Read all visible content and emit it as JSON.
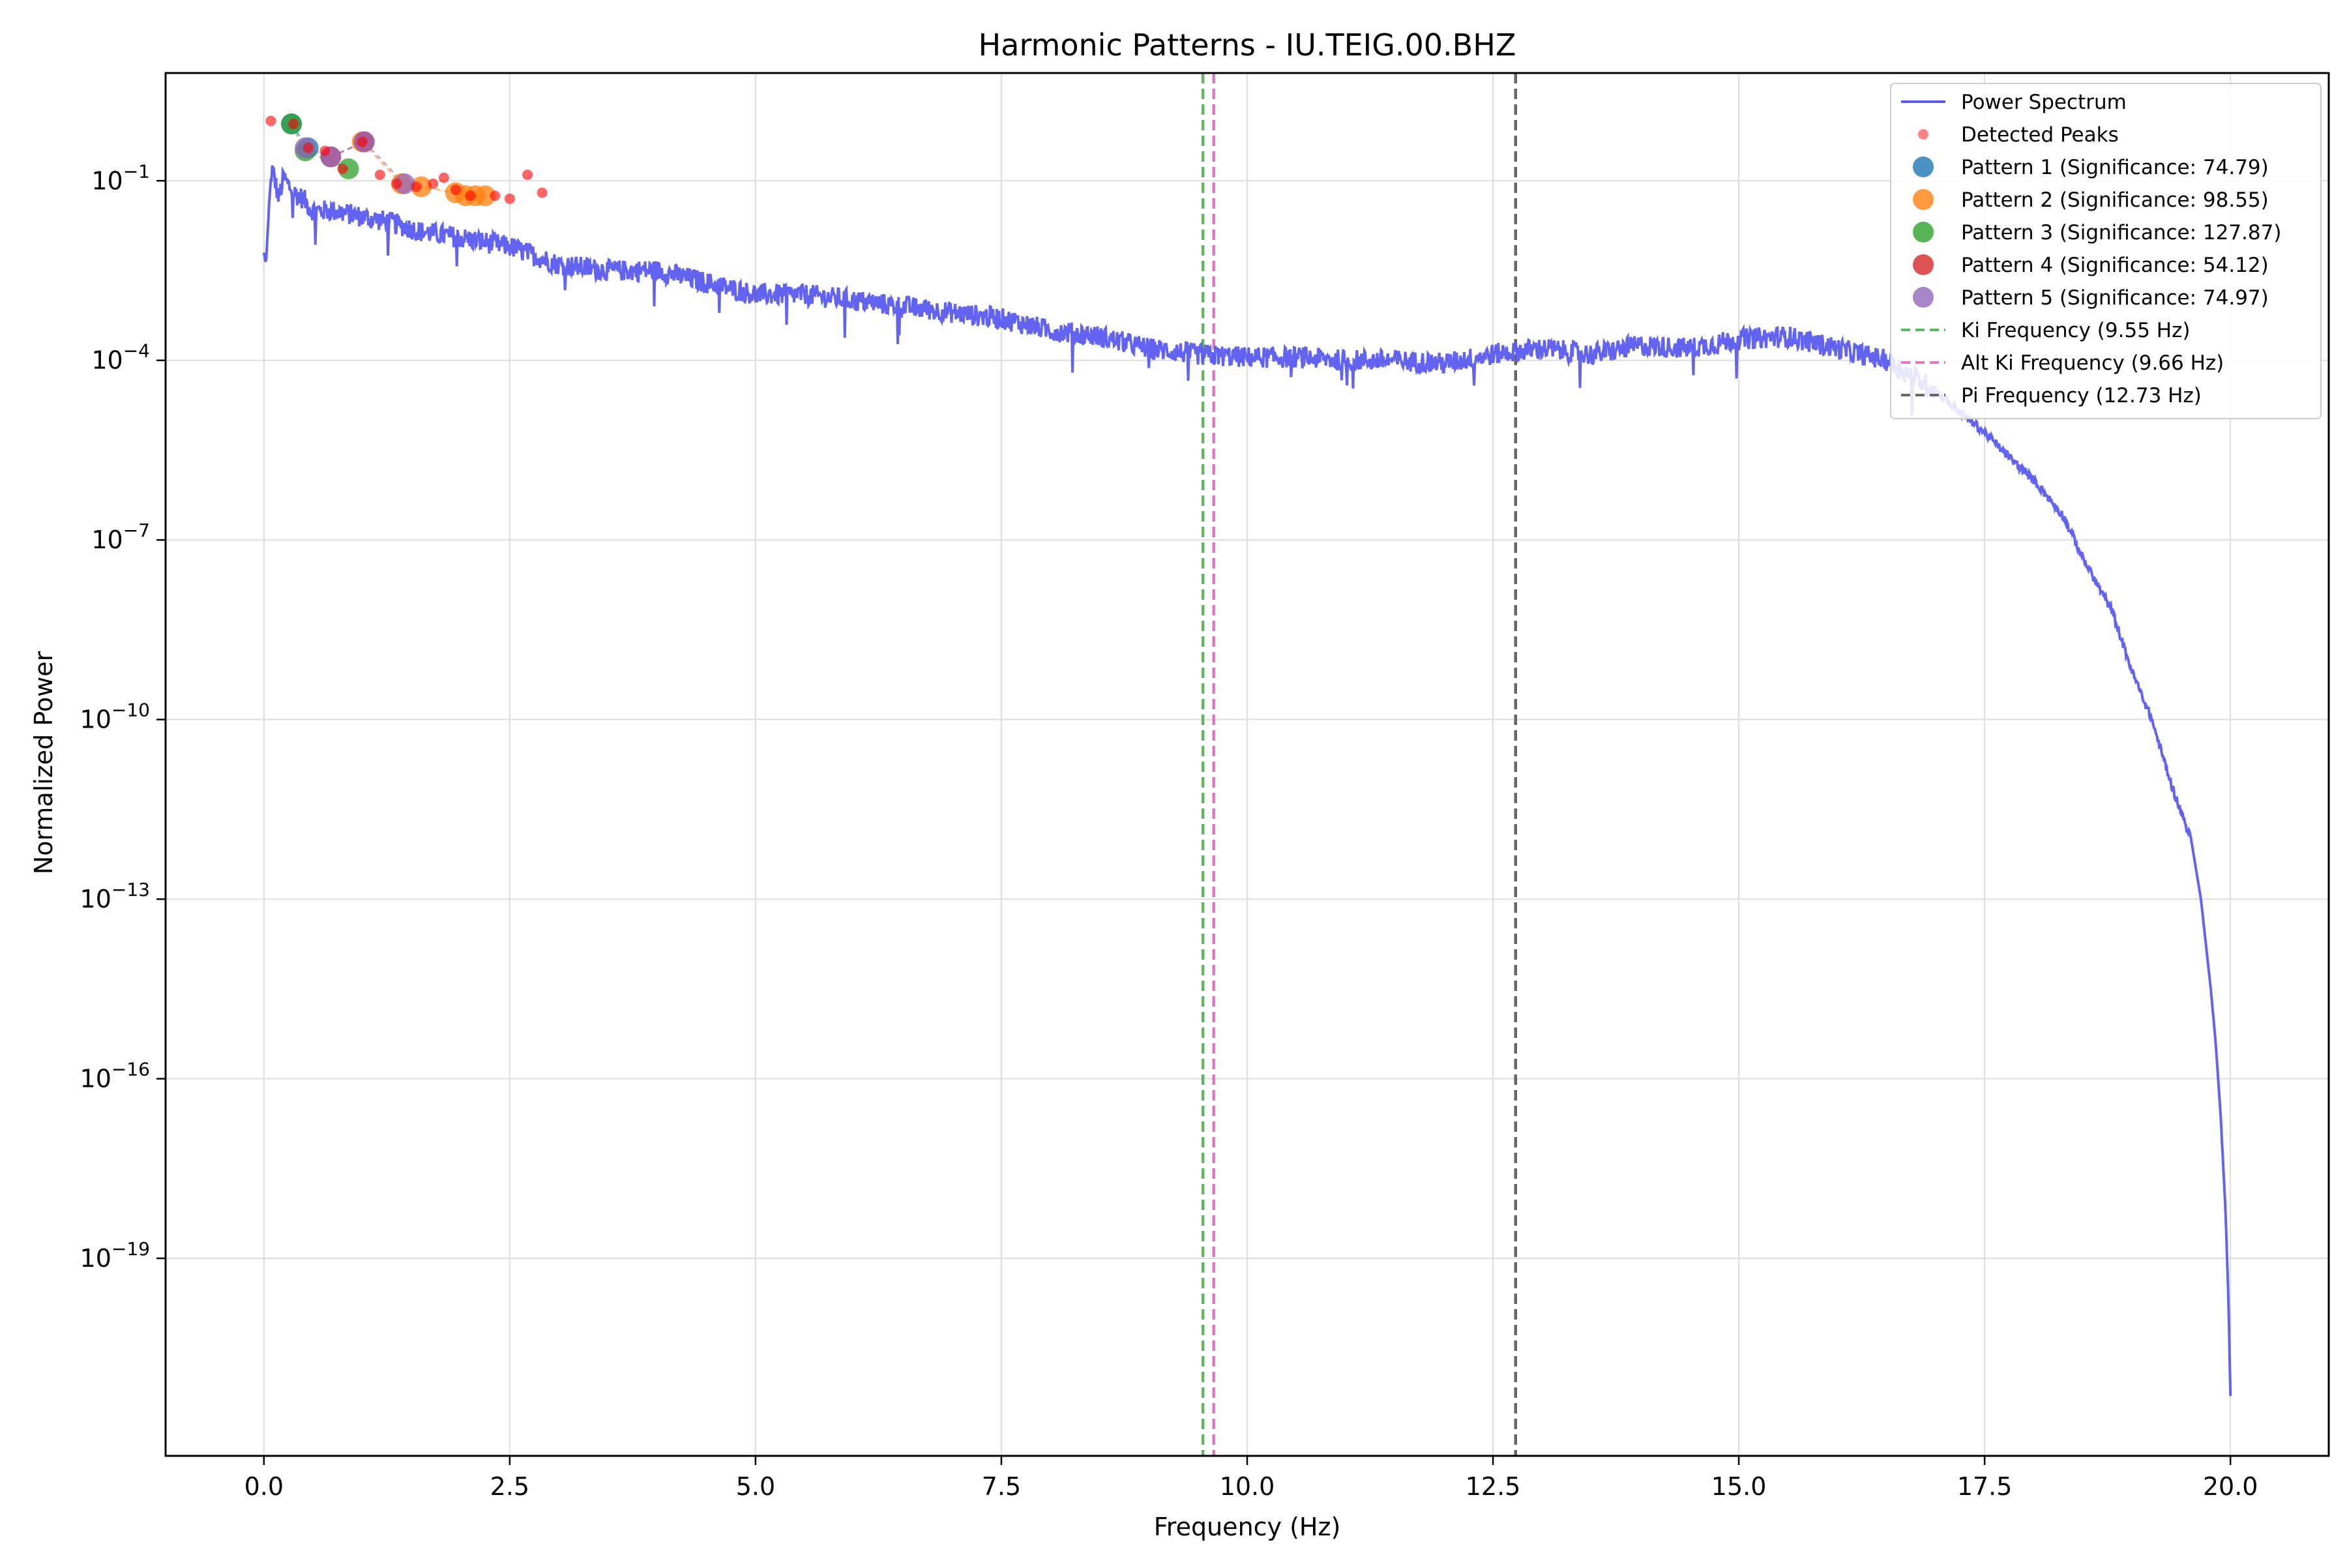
{
  "chart_data": {
    "type": "line",
    "title": "Harmonic Patterns - IU.TEIG.00.BHZ",
    "xlabel": "Frequency (Hz)",
    "ylabel": "Normalized Power",
    "x_scale": "linear",
    "y_scale": "log",
    "xlim": [
      -1.0,
      21.0
    ],
    "ylim_exponent": [
      -22.3,
      0.8
    ],
    "grid": true,
    "legend_position": "top-right",
    "x_ticks": [
      "0.0",
      "2.5",
      "5.0",
      "7.5",
      "10.0",
      "12.5",
      "15.0",
      "17.5",
      "20.0"
    ],
    "y_ticks": [
      {
        "base": "10",
        "exp": "−1",
        "value": 0.1
      },
      {
        "base": "10",
        "exp": "−4",
        "value": 0.0001
      },
      {
        "base": "10",
        "exp": "−7",
        "value": 1e-07
      },
      {
        "base": "10",
        "exp": "−10",
        "value": 1e-10
      },
      {
        "base": "10",
        "exp": "−13",
        "value": 1e-13
      },
      {
        "base": "10",
        "exp": "−16",
        "value": 1e-16
      },
      {
        "base": "10",
        "exp": "−19",
        "value": 1e-19
      }
    ],
    "series": [
      {
        "name": "Power Spectrum",
        "color": "#5b5bf0",
        "x": [
          0.0,
          0.02,
          0.05,
          0.08,
          0.1,
          0.15,
          0.2,
          0.3,
          0.4,
          0.5,
          0.7,
          1.0,
          1.3,
          1.6,
          2.0,
          2.5,
          3.0,
          3.5,
          4.0,
          4.5,
          5.0,
          5.5,
          6.0,
          6.5,
          7.0,
          7.5,
          8.0,
          8.5,
          9.0,
          9.5,
          10.0,
          10.5,
          11.0,
          11.5,
          12.0,
          12.5,
          13.0,
          13.5,
          14.0,
          14.5,
          15.0,
          15.5,
          16.0,
          16.5,
          17.0,
          17.2,
          17.5,
          17.8,
          18.0,
          18.3,
          18.5,
          18.8,
          19.0,
          19.2,
          19.4,
          19.6,
          19.7,
          19.8,
          19.85,
          19.9,
          19.95,
          19.98,
          20.0
        ],
        "log10_y": [
          -2.2,
          -2.4,
          -1.5,
          -0.8,
          -0.9,
          -1.3,
          -0.95,
          -1.2,
          -1.3,
          -1.5,
          -1.5,
          -1.6,
          -1.7,
          -1.85,
          -1.95,
          -2.1,
          -2.4,
          -2.5,
          -2.5,
          -2.7,
          -2.9,
          -2.9,
          -3.0,
          -3.1,
          -3.2,
          -3.3,
          -3.5,
          -3.6,
          -3.8,
          -3.9,
          -3.95,
          -3.95,
          -4.0,
          -4.0,
          -4.05,
          -3.9,
          -3.8,
          -3.9,
          -3.75,
          -3.8,
          -3.65,
          -3.6,
          -3.8,
          -4.0,
          -4.5,
          -4.8,
          -5.2,
          -5.7,
          -6.0,
          -6.6,
          -7.3,
          -8.2,
          -9.2,
          -10.0,
          -11.1,
          -12.0,
          -13.0,
          -14.5,
          -15.4,
          -16.6,
          -18.2,
          -19.7,
          -21.3
        ],
        "noise_amplitude": 0.18
      }
    ],
    "detected_peaks": {
      "name": "Detected Peaks",
      "color": "#ff6666",
      "x": [
        0.07,
        0.3,
        0.45,
        0.62,
        0.8,
        1.0,
        1.18,
        1.35,
        1.55,
        1.72,
        1.83,
        1.95,
        2.1,
        2.35,
        2.5,
        2.68,
        2.83
      ],
      "log10_y": [
        -0.0,
        -0.05,
        -0.45,
        -0.5,
        -0.8,
        -0.35,
        -0.9,
        -1.05,
        -1.1,
        -1.05,
        -0.95,
        -1.15,
        -1.25,
        -1.25,
        -1.3,
        -0.9,
        -1.2
      ]
    },
    "patterns": [
      {
        "name": "Pattern 1 (Significance: 74.79)",
        "color": "#1f77b4",
        "x": [
          0.28,
          0.45
        ],
        "log10_y": [
          -0.05,
          -0.45
        ]
      },
      {
        "name": "Pattern 2 (Significance: 98.55)",
        "color": "#ff7f0e",
        "x": [
          1.0,
          1.4,
          1.6,
          1.95,
          2.05,
          2.15,
          2.25
        ],
        "log10_y": [
          -0.35,
          -1.05,
          -1.1,
          -1.2,
          -1.25,
          -1.25,
          -1.25
        ]
      },
      {
        "name": "Pattern 3 (Significance: 127.87)",
        "color": "#2ca02c",
        "x": [
          0.28,
          0.42,
          0.86
        ],
        "log10_y": [
          -0.05,
          -0.5,
          -0.8
        ]
      },
      {
        "name": "Pattern 4 (Significance: 54.12)",
        "color": "#d62728",
        "x": [
          0.68,
          1.02
        ],
        "log10_y": [
          -0.6,
          -0.35
        ]
      },
      {
        "name": "Pattern 5 (Significance: 74.97)",
        "color": "#9467bd",
        "x": [
          0.42,
          0.68,
          1.02,
          1.43
        ],
        "log10_y": [
          -0.45,
          -0.6,
          -0.35,
          -1.05
        ]
      }
    ],
    "vlines": [
      {
        "name": "Ki Frequency (9.55 Hz)",
        "x": 9.55,
        "color": "#5cb85c"
      },
      {
        "name": "Alt Ki Frequency (9.66 Hz)",
        "x": 9.66,
        "color": "#e377c2"
      },
      {
        "name": "Pi Frequency (12.73 Hz)",
        "x": 12.73,
        "color": "#666666"
      }
    ]
  }
}
